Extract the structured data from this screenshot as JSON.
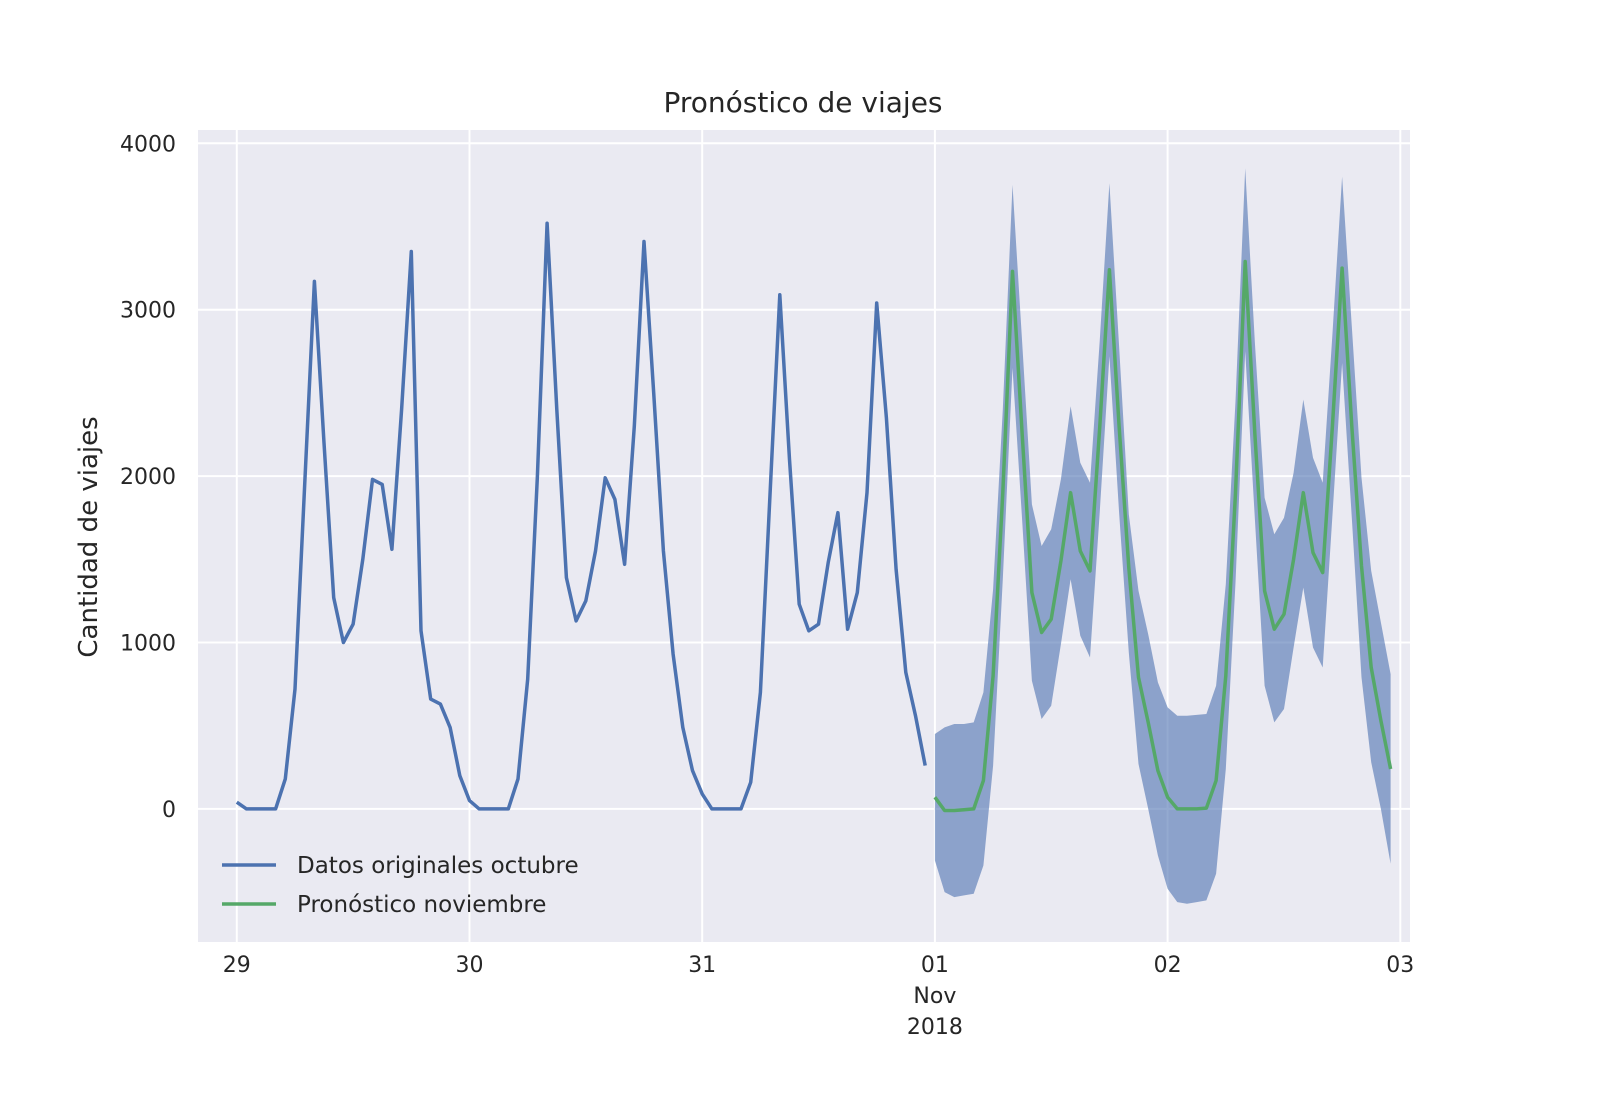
{
  "chart_data": {
    "type": "line",
    "title": "Pronóstico de viajes",
    "xlabel": "",
    "ylabel": "Cantidad de viajes",
    "xlim": [
      "2018-10-28T20:00",
      "2018-11-03T01:00"
    ],
    "ylim": [
      -800,
      4080
    ],
    "grid": true,
    "legend_placement": "lower-left",
    "y_ticks": [
      0,
      1000,
      2000,
      3000,
      4000
    ],
    "x_ticks": [
      {
        "date": "2018-10-29",
        "label": "29"
      },
      {
        "date": "2018-10-30",
        "label": "30"
      },
      {
        "date": "2018-10-31",
        "label": "31"
      },
      {
        "date": "2018-11-01",
        "label": "01",
        "label2": "Nov",
        "label3": "2018"
      },
      {
        "date": "2018-11-02",
        "label": "02"
      },
      {
        "date": "2018-11-03",
        "label": "03"
      }
    ],
    "series": [
      {
        "name": "Datos originales octubre",
        "color": "#4c72b0",
        "start": "2018-10-29T00:00",
        "step_hours": 1,
        "values": [
          40,
          0,
          0,
          0,
          0,
          180,
          720,
          1950,
          3170,
          2200,
          1270,
          1000,
          1110,
          1500,
          1980,
          1950,
          1560,
          2400,
          3350,
          1070,
          660,
          630,
          490,
          200,
          50,
          0,
          0,
          0,
          0,
          180,
          780,
          2000,
          3520,
          2400,
          1390,
          1130,
          1250,
          1550,
          1990,
          1860,
          1470,
          2300,
          3410,
          2500,
          1550,
          930,
          490,
          230,
          90,
          0,
          0,
          0,
          0,
          160,
          700,
          1900,
          3090,
          2100,
          1230,
          1070,
          1110,
          1480,
          1780,
          1080,
          1300,
          1900,
          3040,
          2350,
          1440,
          820,
          560,
          260
        ]
      },
      {
        "name": "Pronóstico noviembre",
        "color": "#55a868",
        "start": "2018-11-01T00:00",
        "step_hours": 1,
        "values": [
          70,
          -10,
          -10,
          -5,
          0,
          170,
          800,
          1900,
          3230,
          2250,
          1300,
          1060,
          1140,
          1490,
          1900,
          1550,
          1430,
          2290,
          3240,
          2300,
          1450,
          790,
          520,
          230,
          70,
          0,
          0,
          0,
          5,
          170,
          800,
          1900,
          3290,
          2250,
          1310,
          1080,
          1170,
          1500,
          1900,
          1540,
          1420,
          2300,
          3250,
          2300,
          1460,
          850,
          530,
          240
        ]
      }
    ],
    "interval": {
      "start": "2018-11-01T00:00",
      "step_hours": 1,
      "color": "#4c72b0",
      "upper": [
        450,
        490,
        510,
        510,
        520,
        700,
        1320,
        2400,
        3750,
        2800,
        1830,
        1580,
        1680,
        1980,
        2420,
        2080,
        1960,
        2810,
        3760,
        2780,
        1770,
        1310,
        1050,
        760,
        610,
        560,
        560,
        565,
        570,
        740,
        1350,
        2450,
        3850,
        2800,
        1870,
        1650,
        1750,
        2020,
        2460,
        2110,
        1960,
        2850,
        3800,
        2900,
        1990,
        1430,
        1120,
        810
      ],
      "lower": [
        -310,
        -500,
        -530,
        -520,
        -510,
        -340,
        260,
        1380,
        2650,
        1730,
        770,
        540,
        620,
        990,
        1380,
        1040,
        910,
        1780,
        2720,
        1780,
        940,
        270,
        0,
        -280,
        -480,
        -560,
        -570,
        -560,
        -550,
        -390,
        240,
        1360,
        2750,
        1740,
        740,
        520,
        600,
        970,
        1330,
        970,
        850,
        1760,
        2680,
        1750,
        790,
        280,
        0,
        -330
      ]
    }
  }
}
